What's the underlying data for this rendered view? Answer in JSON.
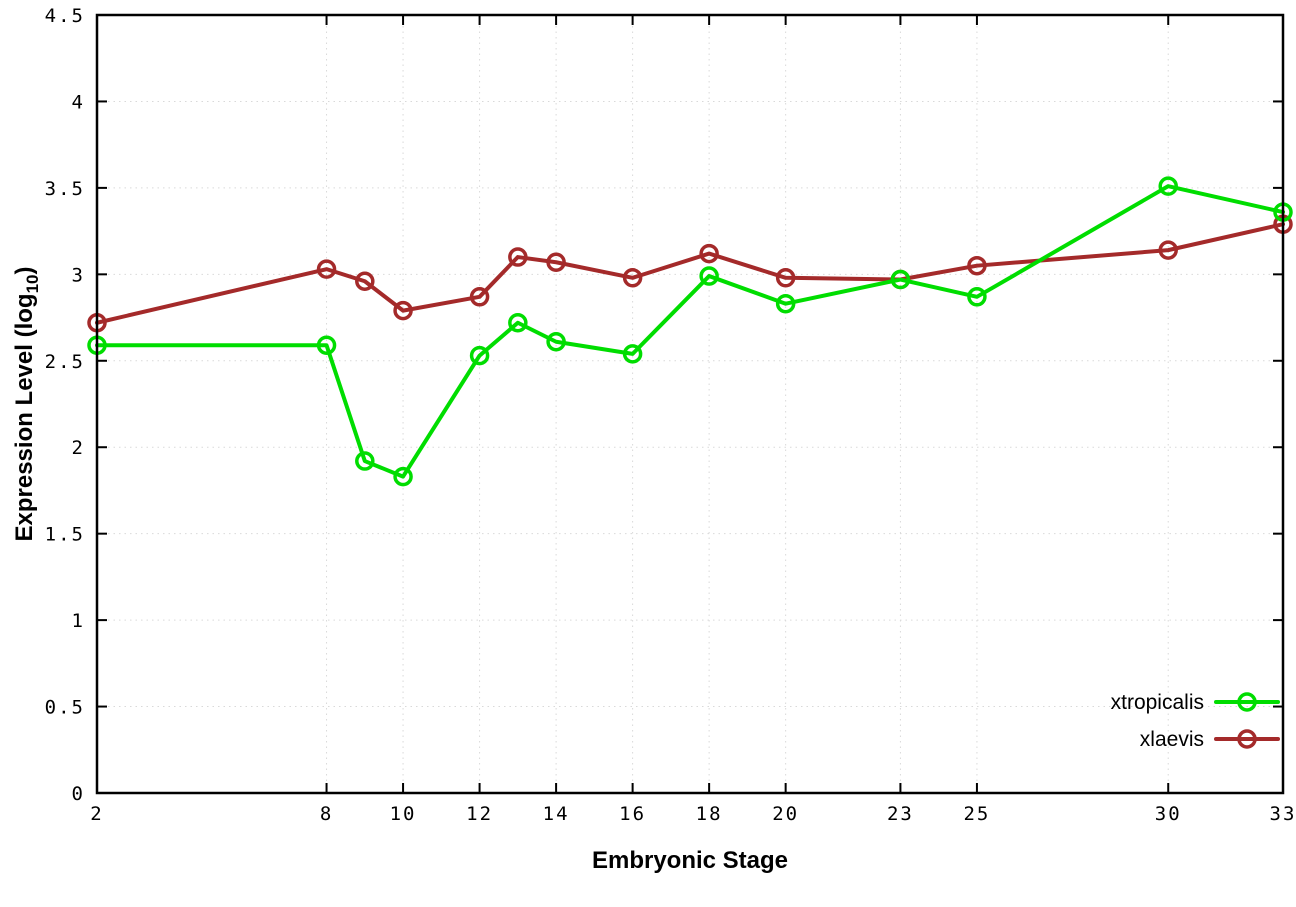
{
  "chart_data": {
    "type": "line",
    "title": "",
    "xlabel": "Embryonic Stage",
    "ylabel": "Expression Level (log10)",
    "ylabel_parts": {
      "pre": "Expression Level (log",
      "sub": "10",
      "post": ")"
    },
    "xlim": [
      2,
      33
    ],
    "ylim": [
      0,
      4.5
    ],
    "x_ticks": [
      2,
      8,
      10,
      12,
      14,
      16,
      18,
      20,
      23,
      25,
      30,
      33
    ],
    "y_ticks": [
      0,
      0.5,
      1,
      1.5,
      2,
      2.5,
      3,
      3.5,
      4,
      4.5
    ],
    "y_tick_labels": [
      "0",
      "0.5",
      "1",
      "1.5",
      "2",
      "2.5",
      "3",
      "3.5",
      "4",
      "4.5"
    ],
    "x": [
      2,
      8,
      9,
      10,
      12,
      13,
      14,
      16,
      18,
      20,
      23,
      25,
      30,
      33
    ],
    "series": [
      {
        "name": "xtropicalis",
        "color": "#00dd00",
        "values": [
          2.59,
          2.59,
          1.92,
          1.83,
          2.53,
          2.72,
          2.61,
          2.54,
          2.99,
          2.83,
          2.97,
          2.87,
          3.51,
          3.36
        ]
      },
      {
        "name": "xlaevis",
        "color": "#a42a2a",
        "values": [
          2.72,
          3.03,
          2.96,
          2.79,
          2.87,
          3.1,
          3.07,
          2.98,
          3.12,
          2.98,
          2.97,
          3.05,
          3.14,
          3.29
        ]
      }
    ],
    "legend_position": "bottom-right",
    "grid": true,
    "colors": {
      "border": "#000000",
      "grid": "#d9d9d9",
      "background": "#ffffff"
    }
  }
}
